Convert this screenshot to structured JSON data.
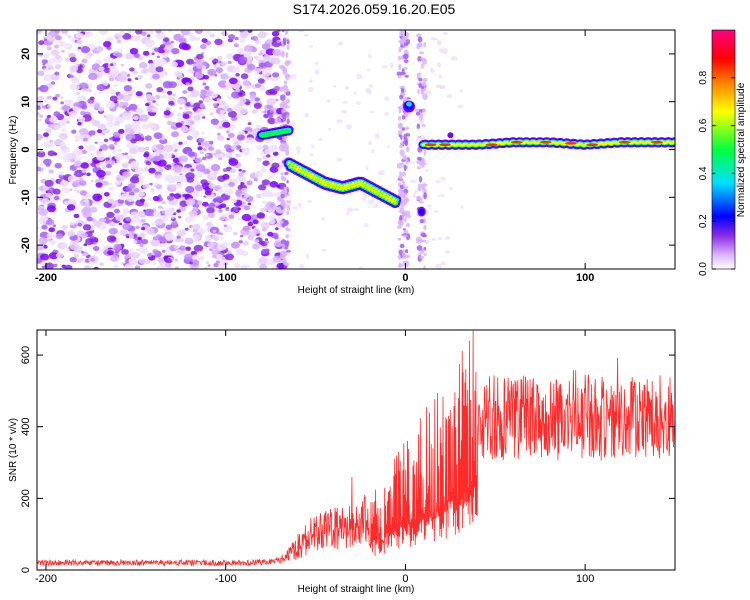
{
  "title": "S174.2026.059.16.20.E05",
  "chart_data": [
    {
      "type": "heatmap",
      "name": "spectrogram",
      "xlabel": "Height of straight line (km)",
      "ylabel": "Frequency (Hz)",
      "xlim": [
        -205,
        150
      ],
      "ylim": [
        -25,
        25
      ],
      "xticks": [
        -200,
        -100,
        0,
        100
      ],
      "yticks": [
        20,
        10,
        0,
        -10,
        -20
      ],
      "grid": false,
      "features": [
        {
          "label": "noise region",
          "x_range": [
            -205,
            -68
          ],
          "amplitude": "0.0-0.3"
        },
        {
          "label": "feature at -80..-65",
          "x": [
            -80,
            -65
          ],
          "y": [
            3,
            4
          ]
        },
        {
          "label": "descending trace",
          "x": [
            -65,
            -55,
            -45,
            -35,
            -25,
            -15,
            -5
          ],
          "y": [
            -3,
            -5,
            -7,
            -8,
            -7,
            -9,
            -11
          ]
        },
        {
          "label": "vertical band",
          "x": 0,
          "y_range": [
            -25,
            25
          ]
        },
        {
          "label": "blob near 0",
          "x": 2,
          "y": 9
        },
        {
          "label": "flat trace",
          "x": [
            10,
            40,
            60,
            80,
            100,
            120,
            150
          ],
          "y": [
            1,
            1,
            1.5,
            1.5,
            1,
            1.5,
            1.5
          ]
        }
      ],
      "colorbar": {
        "label": "Normalized spectral amplitude",
        "range": [
          0.0,
          1.0
        ],
        "ticks": [
          "0.0",
          "0.2",
          "0.4",
          "0.6",
          "0.8"
        ],
        "colors": [
          "#ffffff",
          "#d9b3ff",
          "#7b00ff",
          "#0000ff",
          "#00e0ff",
          "#00ff40",
          "#ffff00",
          "#ff8000",
          "#ff0000",
          "#ff0080"
        ]
      }
    },
    {
      "type": "line",
      "name": "snr",
      "xlabel": "Height of straight line (km)",
      "ylabel": "SNR (10 * v/v)",
      "xlim": [
        -205,
        150
      ],
      "ylim": [
        0,
        670
      ],
      "xticks": [
        -200,
        -100,
        0,
        100
      ],
      "yticks": [
        0,
        200,
        400,
        600
      ],
      "color": "#ff2a2a",
      "series": [
        {
          "name": "SNR",
          "x": [
            -205,
            -180,
            -150,
            -120,
            -90,
            -75,
            -65,
            -55,
            -45,
            -35,
            -25,
            -15,
            -5,
            5,
            15,
            25,
            35,
            45,
            55,
            65,
            75,
            85,
            95,
            105,
            115,
            125,
            135,
            150
          ],
          "y": [
            20,
            20,
            20,
            20,
            20,
            22,
            40,
            90,
            110,
            115,
            130,
            165,
            210,
            260,
            310,
            360,
            420,
            430,
            420,
            430,
            435,
            415,
            440,
            420,
            430,
            420,
            435,
            420
          ]
        }
      ]
    }
  ]
}
